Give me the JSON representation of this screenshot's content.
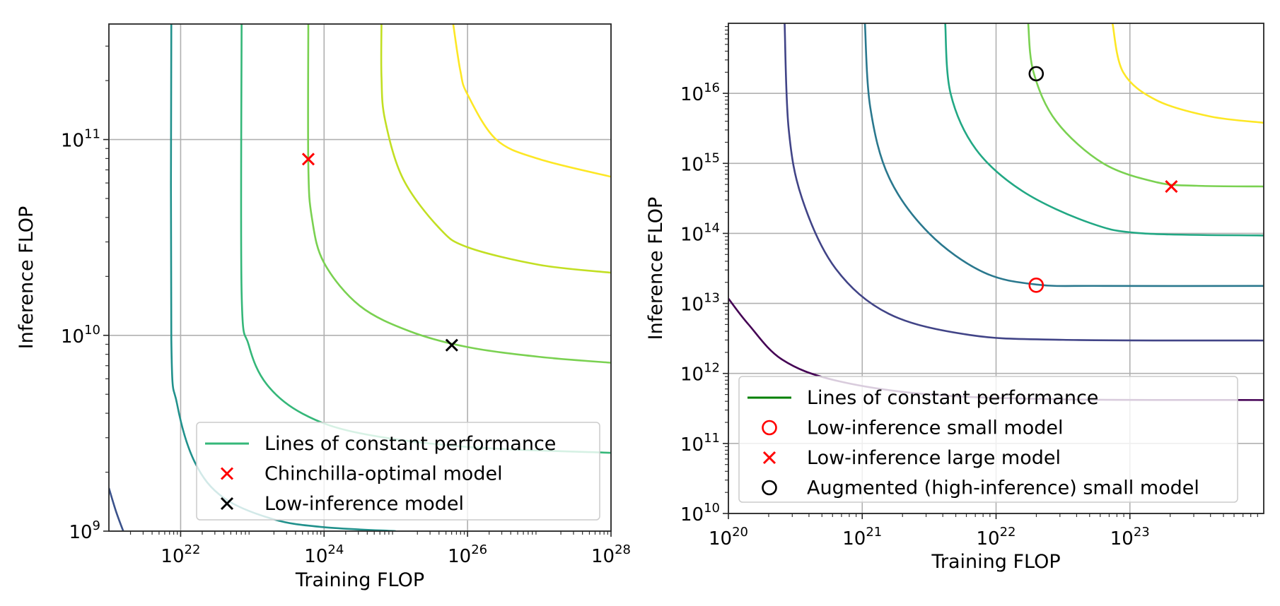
{
  "chart_data": [
    {
      "type": "line",
      "id": "left",
      "title": "",
      "xlabel": "Training FLOP",
      "ylabel": "Inference FLOP",
      "xscale": "log",
      "yscale": "log",
      "xlim_log10": [
        21,
        28
      ],
      "ylim_log10": [
        9,
        11.59
      ],
      "x_ticks": [
        {
          "base": "10",
          "exp": "22",
          "log10": 22
        },
        {
          "base": "10",
          "exp": "24",
          "log10": 24
        },
        {
          "base": "10",
          "exp": "26",
          "log10": 26
        },
        {
          "base": "10",
          "exp": "28",
          "log10": 28
        }
      ],
      "y_ticks": [
        {
          "base": "10",
          "exp": "9",
          "log10": 9
        },
        {
          "base": "10",
          "exp": "10",
          "log10": 10
        },
        {
          "base": "10",
          "exp": "11",
          "log10": 11
        }
      ],
      "grid": true,
      "legend_position": "lower-right",
      "legend": [
        {
          "label": "Lines of constant performance",
          "marker": "line",
          "color": "#35b779"
        },
        {
          "label": "Chinchilla-optimal model",
          "marker": "x",
          "color": "#ff0000"
        },
        {
          "label": "Low-inference model",
          "marker": "x",
          "color": "#000000"
        }
      ],
      "series": [
        {
          "name": "constant performance 1",
          "color": "#3b528b",
          "points_log10": [
            [
              21.0,
              9.22
            ],
            [
              21.1,
              9.1
            ],
            [
              21.2,
              9.0
            ]
          ]
        },
        {
          "name": "constant performance 2",
          "color": "#21918c",
          "points_log10": [
            [
              21.87,
              11.59
            ],
            [
              21.87,
              9.98
            ],
            [
              21.95,
              9.65
            ],
            [
              22.2,
              9.35
            ],
            [
              22.6,
              9.17
            ],
            [
              23.3,
              9.06
            ],
            [
              24.0,
              9.02
            ],
            [
              25.0,
              9.0
            ]
          ]
        },
        {
          "name": "constant performance 3",
          "color": "#35b779",
          "points_log10": [
            [
              22.85,
              11.59
            ],
            [
              22.85,
              10.22
            ],
            [
              22.95,
              9.95
            ],
            [
              23.2,
              9.75
            ],
            [
              23.7,
              9.6
            ],
            [
              24.5,
              9.5
            ],
            [
              26.0,
              9.43
            ],
            [
              28.0,
              9.4
            ]
          ]
        },
        {
          "name": "constant performance 4",
          "color": "#7ad151",
          "points_log10": [
            [
              23.78,
              11.59
            ],
            [
              23.78,
              10.87
            ],
            [
              23.83,
              10.6
            ],
            [
              24.0,
              10.37
            ],
            [
              24.5,
              10.15
            ],
            [
              25.2,
              10.02
            ],
            [
              26.0,
              9.94
            ],
            [
              27.0,
              9.89
            ],
            [
              28.0,
              9.86
            ]
          ]
        },
        {
          "name": "constant performance 5",
          "color": "#c2df23",
          "points_log10": [
            [
              24.8,
              11.59
            ],
            [
              24.8,
              11.32
            ],
            [
              24.85,
              11.1
            ],
            [
              25.1,
              10.8
            ],
            [
              25.6,
              10.55
            ],
            [
              26.0,
              10.45
            ],
            [
              27.0,
              10.36
            ],
            [
              28.0,
              10.32
            ]
          ]
        },
        {
          "name": "constant performance 6",
          "color": "#fde725",
          "points_log10": [
            [
              25.8,
              11.59
            ],
            [
              25.9,
              11.35
            ],
            [
              26.0,
              11.23
            ],
            [
              26.4,
              11.0
            ],
            [
              27.0,
              10.9
            ],
            [
              28.0,
              10.81
            ]
          ]
        }
      ],
      "markers": [
        {
          "label": "Chinchilla-optimal model",
          "shape": "x",
          "color": "#ff0000",
          "x": 6e+23,
          "y": 80000000000.0,
          "log10": [
            23.78,
            10.9
          ]
        },
        {
          "label": "Low-inference model",
          "shape": "x",
          "color": "#000000",
          "x": 6e+25,
          "y": 9000000000.0,
          "log10": [
            25.78,
            9.95
          ]
        }
      ]
    },
    {
      "type": "line",
      "id": "right",
      "title": "",
      "xlabel": "Training FLOP",
      "ylabel": "Inference FLOP",
      "xscale": "log",
      "yscale": "log",
      "xlim_log10": [
        20,
        24
      ],
      "ylim_log10": [
        10,
        17
      ],
      "x_ticks": [
        {
          "base": "10",
          "exp": "20",
          "log10": 20
        },
        {
          "base": "10",
          "exp": "21",
          "log10": 21
        },
        {
          "base": "10",
          "exp": "22",
          "log10": 22
        },
        {
          "base": "10",
          "exp": "23",
          "log10": 23
        }
      ],
      "y_ticks": [
        {
          "base": "10",
          "exp": "10",
          "log10": 10
        },
        {
          "base": "10",
          "exp": "11",
          "log10": 11
        },
        {
          "base": "10",
          "exp": "12",
          "log10": 12
        },
        {
          "base": "10",
          "exp": "13",
          "log10": 13
        },
        {
          "base": "10",
          "exp": "14",
          "log10": 14
        },
        {
          "base": "10",
          "exp": "15",
          "log10": 15
        },
        {
          "base": "10",
          "exp": "16",
          "log10": 16
        }
      ],
      "grid": true,
      "legend_position": "lower-center",
      "legend": [
        {
          "label": "Lines of constant performance",
          "marker": "line",
          "color": "#008000"
        },
        {
          "label": "Low-inference small model",
          "marker": "circle",
          "color": "#ff0000"
        },
        {
          "label": "Low-inference large model",
          "marker": "x",
          "color": "#ff0000"
        },
        {
          "label": "Augmented (high-inference) small model",
          "marker": "circle",
          "color": "#000000"
        }
      ],
      "series": [
        {
          "name": "constant performance 1",
          "color": "#440154",
          "points_log10": [
            [
              20.0,
              13.07
            ],
            [
              20.15,
              12.7
            ],
            [
              20.4,
              12.2
            ],
            [
              20.8,
              11.9
            ],
            [
              21.5,
              11.7
            ],
            [
              22.5,
              11.63
            ],
            [
              24.0,
              11.62
            ]
          ]
        },
        {
          "name": "constant performance 2",
          "color": "#414487",
          "points_log10": [
            [
              20.42,
              17.0
            ],
            [
              20.45,
              15.5
            ],
            [
              20.55,
              14.5
            ],
            [
              20.8,
              13.5
            ],
            [
              21.2,
              12.85
            ],
            [
              21.8,
              12.55
            ],
            [
              22.5,
              12.48
            ],
            [
              24.0,
              12.47
            ]
          ]
        },
        {
          "name": "constant performance 3",
          "color": "#2a788e",
          "points_log10": [
            [
              21.02,
              17.0
            ],
            [
              21.06,
              15.8
            ],
            [
              21.2,
              14.8
            ],
            [
              21.5,
              14.0
            ],
            [
              21.9,
              13.45
            ],
            [
              22.3,
              13.27
            ],
            [
              22.8,
              13.25
            ],
            [
              24.0,
              13.25
            ]
          ]
        },
        {
          "name": "constant performance 4",
          "color": "#22a884",
          "points_log10": [
            [
              21.62,
              17.0
            ],
            [
              21.66,
              16.0
            ],
            [
              21.85,
              15.2
            ],
            [
              22.2,
              14.6
            ],
            [
              22.7,
              14.15
            ],
            [
              23.1,
              14.0
            ],
            [
              24.0,
              13.97
            ]
          ]
        },
        {
          "name": "constant performance 5",
          "color": "#7ad151",
          "points_log10": [
            [
              22.24,
              17.0
            ],
            [
              22.28,
              16.3
            ],
            [
              22.45,
              15.6
            ],
            [
              22.8,
              15.0
            ],
            [
              23.2,
              14.73
            ],
            [
              23.5,
              14.68
            ],
            [
              24.0,
              14.67
            ]
          ]
        },
        {
          "name": "constant performance 6",
          "color": "#fde725",
          "points_log10": [
            [
              22.87,
              17.0
            ],
            [
              22.95,
              16.3
            ],
            [
              23.2,
              15.9
            ],
            [
              23.6,
              15.67
            ],
            [
              24.0,
              15.58
            ]
          ]
        }
      ],
      "markers": [
        {
          "label": "Low-inference small model",
          "shape": "circle",
          "color": "#ff0000",
          "x": 2e+22,
          "y": 20000000000000.0,
          "log10": [
            22.3,
            13.26
          ]
        },
        {
          "label": "Low-inference large model",
          "shape": "x",
          "color": "#ff0000",
          "x": 2e+23,
          "y": 450000000000000.0,
          "log10": [
            23.31,
            14.67
          ]
        },
        {
          "label": "Augmented (high-inference) small model",
          "shape": "circle",
          "color": "#000000",
          "x": 2e+22,
          "y": 2e+16,
          "log10": [
            22.3,
            16.28
          ]
        }
      ]
    }
  ]
}
